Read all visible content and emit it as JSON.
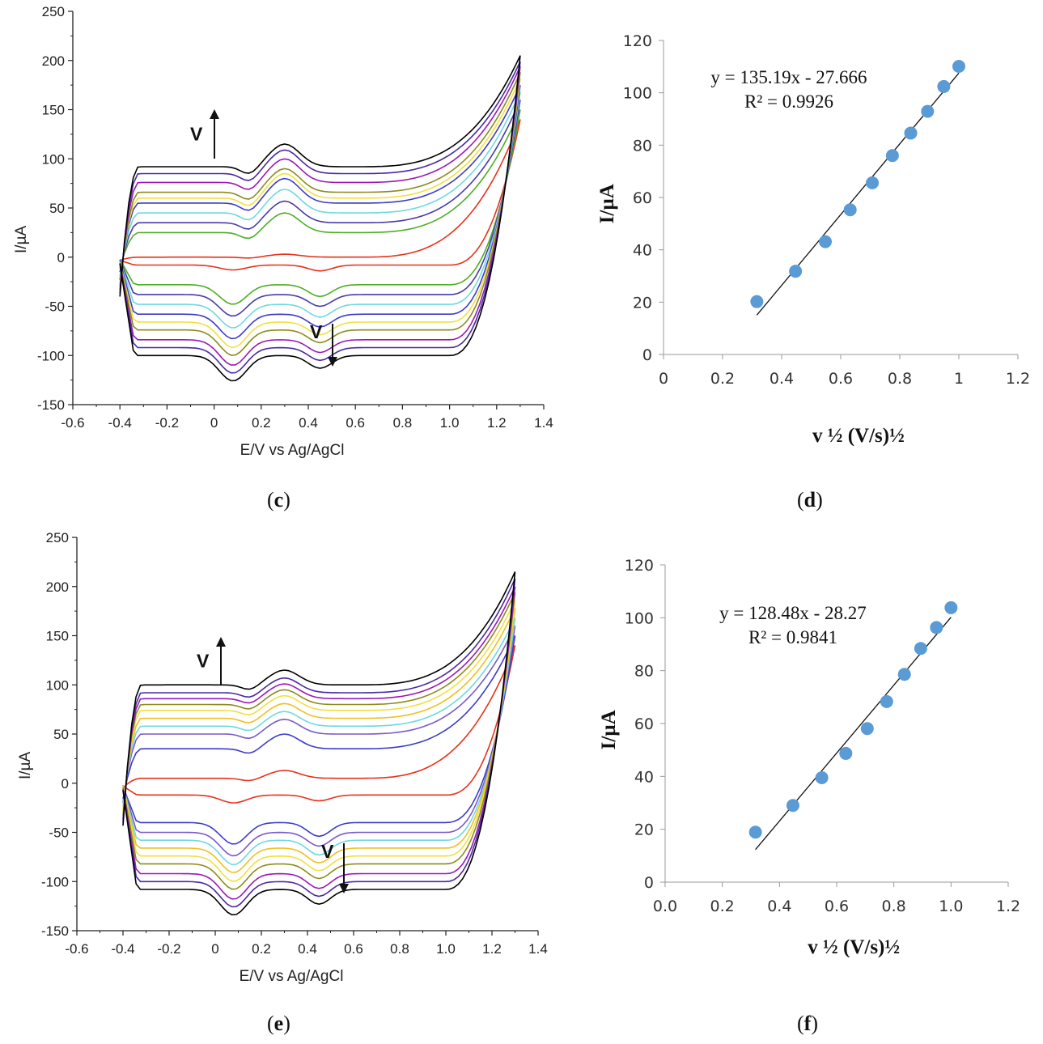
{
  "captions": {
    "c": "c",
    "d": "d",
    "e": "e",
    "f": "f"
  },
  "chart_data": [
    {
      "id": "c",
      "type": "line",
      "xlabel": "E/V vs Ag/AgCl",
      "ylabel": "I/µA",
      "xlim": [
        -0.6,
        1.4
      ],
      "ylim": [
        -150,
        250
      ],
      "xticks": [
        "-0.6",
        "-0.4",
        "-0.2",
        "0",
        "0.2",
        "0.4",
        "0.6",
        "0.8",
        "1.0",
        "1.2",
        "1.4"
      ],
      "yticks": [
        "-150",
        "-100",
        "-50",
        "0",
        "50",
        "100",
        "150",
        "200",
        "250"
      ],
      "arrow_up_label": "V",
      "arrow_down_label": "V",
      "series_colors": [
        "#e8311a",
        "#4caf22",
        "#4a3aa8",
        "#6fd8e0",
        "#3c3cc8",
        "#f0e040",
        "#8c8c1c",
        "#9a18b8",
        "#4a2aa0",
        "#000000"
      ],
      "voltammograms": {
        "e_start": -0.4,
        "e_end": 1.3,
        "anodic_base": [
          0,
          25,
          35,
          45,
          55,
          60,
          66,
          76,
          85,
          92
        ],
        "anodic_peak": [
          3,
          20,
          22,
          24,
          25,
          25,
          24,
          24,
          24,
          23
        ],
        "peak_potential": 0.3,
        "cathodic_base": [
          -8,
          -28,
          -38,
          -48,
          -58,
          -66,
          -74,
          -84,
          -92,
          -100
        ],
        "cathodic_peak_1": [
          -5,
          -20,
          -22,
          -24,
          -25,
          -26,
          -26,
          -26,
          -26,
          -26
        ],
        "cathodic_peak_2": [
          -6,
          -12,
          -12,
          -13,
          -13,
          -13,
          -13,
          -13,
          -13,
          -13
        ],
        "end_current": [
          140,
          150,
          160,
          168,
          175,
          182,
          188,
          194,
          199,
          205
        ]
      }
    },
    {
      "id": "d",
      "type": "scatter",
      "xlabel": "v ½ (V/s)½",
      "ylabel": "I/µA",
      "xlim": [
        0,
        1.2
      ],
      "ylim": [
        0,
        120
      ],
      "xticks": [
        "0",
        "0.2",
        "0.4",
        "0.6",
        "0.8",
        "1",
        "1.2"
      ],
      "yticks": [
        "0",
        "20",
        "40",
        "60",
        "80",
        "100",
        "120"
      ],
      "x": [
        0.316,
        0.447,
        0.548,
        0.632,
        0.707,
        0.775,
        0.837,
        0.894,
        0.949,
        1.0
      ],
      "y": [
        20.2,
        31.8,
        43.1,
        55.3,
        65.6,
        76.0,
        84.6,
        92.9,
        102.4,
        110.1
      ],
      "trendline": {
        "slope": 135.19,
        "intercept": -27.666,
        "x_range": [
          0.316,
          1.0
        ]
      },
      "equation": "y = 135.19x - 27.666",
      "r_squared": "R² = 0.9926",
      "marker_color": "#5b9bd5"
    },
    {
      "id": "e",
      "type": "line",
      "xlabel": "E/V vs Ag/AgCl",
      "ylabel": "I/µA",
      "xlim": [
        -0.6,
        1.4
      ],
      "ylim": [
        -150,
        250
      ],
      "xticks": [
        "-0.6",
        "-0.4",
        "-0.2",
        "0",
        "0.2",
        "0.4",
        "0.6",
        "0.8",
        "1.0",
        "1.2",
        "1.4"
      ],
      "yticks": [
        "-150",
        "-100",
        "-50",
        "0",
        "50",
        "100",
        "150",
        "200",
        "250"
      ],
      "arrow_up_label": "V",
      "arrow_down_label": "V",
      "series_colors": [
        "#e8311a",
        "#3c3cc8",
        "#7a5ac8",
        "#6fd8e0",
        "#f0c020",
        "#f0e040",
        "#8c8c1c",
        "#9a18b8",
        "#4a2aa0",
        "#000000"
      ],
      "voltammograms": {
        "e_start": -0.4,
        "e_end": 1.3,
        "anodic_base": [
          5,
          35,
          50,
          58,
          66,
          74,
          80,
          86,
          92,
          100
        ],
        "anodic_peak": [
          8,
          15,
          15,
          15,
          15,
          15,
          15,
          15,
          15,
          15
        ],
        "peak_potential": 0.3,
        "cathodic_base": [
          -12,
          -40,
          -50,
          -58,
          -66,
          -74,
          -82,
          -92,
          -100,
          -108
        ],
        "cathodic_peak_1": [
          -8,
          -22,
          -24,
          -25,
          -25,
          -26,
          -26,
          -26,
          -26,
          -26
        ],
        "cathodic_peak_2": [
          -6,
          -14,
          -14,
          -15,
          -15,
          -15,
          -15,
          -15,
          -15,
          -15
        ],
        "end_current": [
          140,
          150,
          160,
          168,
          178,
          186,
          194,
          200,
          208,
          215
        ]
      }
    },
    {
      "id": "f",
      "type": "scatter",
      "xlabel": "v ½ (V/s)½",
      "ylabel": "I/µA",
      "xlim": [
        0,
        1.2
      ],
      "ylim": [
        0,
        120
      ],
      "xticks": [
        "0.0",
        "0.2",
        "0.4",
        "0.6",
        "0.8",
        "1.0",
        "1.2"
      ],
      "yticks": [
        "0",
        "20",
        "40",
        "60",
        "80",
        "100",
        "120"
      ],
      "x": [
        0.316,
        0.447,
        0.548,
        0.632,
        0.707,
        0.775,
        0.837,
        0.894,
        0.949,
        1.0
      ],
      "y": [
        18.9,
        29.0,
        39.5,
        48.7,
        58.1,
        68.3,
        78.6,
        88.4,
        96.3,
        103.8
      ],
      "trendline": {
        "slope": 128.48,
        "intercept": -28.27,
        "x_range": [
          0.316,
          1.0
        ]
      },
      "equation": "y = 128.48x - 28.27",
      "r_squared": "R² = 0.9841",
      "marker_color": "#5b9bd5"
    }
  ]
}
